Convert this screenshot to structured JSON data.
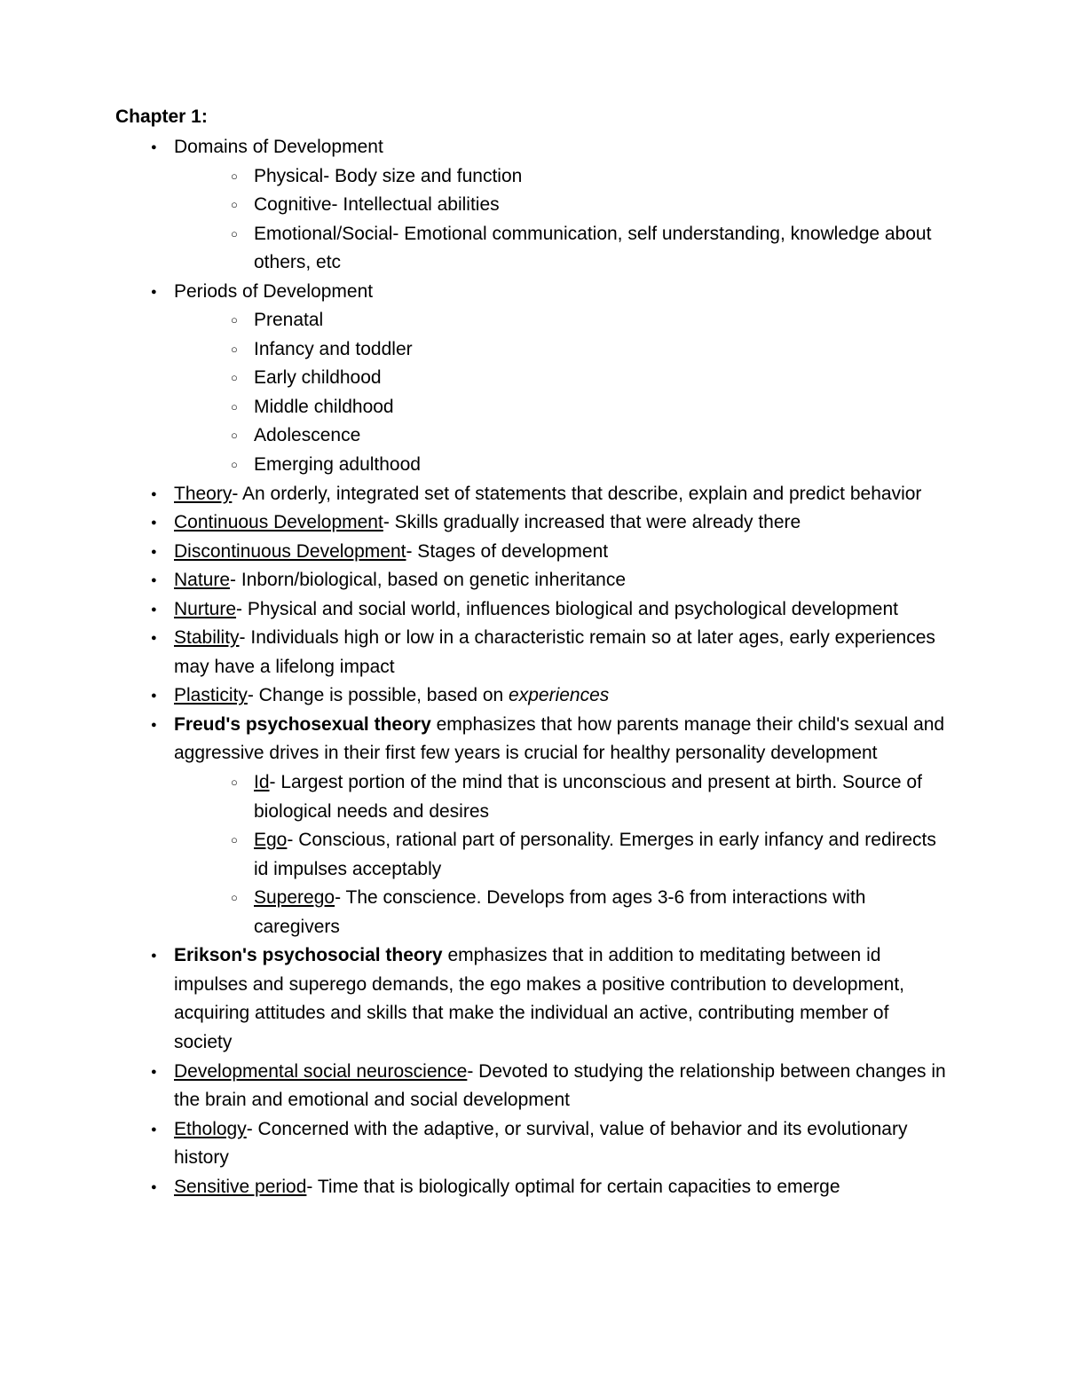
{
  "chapter_title": "Chapter 1:",
  "items": [
    {
      "segments": [
        {
          "text": "Domains of Development"
        }
      ],
      "children": [
        {
          "segments": [
            {
              "text": "Physical- Body size and function"
            }
          ]
        },
        {
          "segments": [
            {
              "text": "Cognitive- Intellectual abilities"
            }
          ]
        },
        {
          "segments": [
            {
              "text": "Emotional/Social- Emotional communication, self understanding, knowledge about others, etc"
            }
          ]
        }
      ]
    },
    {
      "segments": [
        {
          "text": "Periods of Development"
        }
      ],
      "children": [
        {
          "segments": [
            {
              "text": "Prenatal"
            }
          ]
        },
        {
          "segments": [
            {
              "text": "Infancy and toddler"
            }
          ]
        },
        {
          "segments": [
            {
              "text": "Early childhood"
            }
          ]
        },
        {
          "segments": [
            {
              "text": "Middle childhood"
            }
          ]
        },
        {
          "segments": [
            {
              "text": "Adolescence"
            }
          ]
        },
        {
          "segments": [
            {
              "text": "Emerging adulthood"
            }
          ]
        }
      ]
    },
    {
      "segments": [
        {
          "text": "Theory",
          "underline": true
        },
        {
          "text": "- An orderly, integrated set of statements that describe, explain and predict behavior"
        }
      ]
    },
    {
      "segments": [
        {
          "text": "Continuous Development",
          "underline": true
        },
        {
          "text": "- Skills gradually increased that were already there"
        }
      ]
    },
    {
      "segments": [
        {
          "text": "Discontinuous Development",
          "underline": true
        },
        {
          "text": "- Stages of development"
        }
      ]
    },
    {
      "segments": [
        {
          "text": "Nature",
          "underline": true
        },
        {
          "text": "- Inborn/biological, based on genetic inheritance"
        }
      ]
    },
    {
      "segments": [
        {
          "text": "Nurture",
          "underline": true
        },
        {
          "text": "- Physical and social world, influences biological and psychological development"
        }
      ]
    },
    {
      "segments": [
        {
          "text": "Stability",
          "underline": true
        },
        {
          "text": "- Individuals high or low in a characteristic remain so at later ages, early experiences may have a lifelong impact"
        }
      ]
    },
    {
      "segments": [
        {
          "text": "Plasticity",
          "underline": true
        },
        {
          "text": "- Change is possible, based on "
        },
        {
          "text": "experiences",
          "italic": true
        }
      ]
    },
    {
      "segments": [
        {
          "text": "Freud's psychosexual theory",
          "bold": true
        },
        {
          "text": " emphasizes that how parents manage their child's sexual and aggressive drives in their first few years is crucial for healthy personality development"
        }
      ],
      "children": [
        {
          "segments": [
            {
              "text": "Id",
              "underline": true
            },
            {
              "text": "- Largest portion of the mind that is unconscious and present at birth. Source of biological needs and desires"
            }
          ]
        },
        {
          "segments": [
            {
              "text": "Ego",
              "underline": true
            },
            {
              "text": "- Conscious, rational part of personality. Emerges in early infancy and redirects id impulses acceptably"
            }
          ]
        },
        {
          "segments": [
            {
              "text": "Superego",
              "underline": true
            },
            {
              "text": "- The conscience. Develops from ages 3-6 from interactions with caregivers"
            }
          ]
        }
      ]
    },
    {
      "segments": [
        {
          "text": "Erikson's psychosocial theory",
          "bold": true
        },
        {
          "text": " emphasizes that in addition to meditating between id impulses and superego demands, the ego makes a positive contribution to development, acquiring attitudes and skills that make the individual an active, contributing member of society"
        }
      ]
    },
    {
      "segments": [
        {
          "text": "Developmental social neuroscience",
          "underline": true
        },
        {
          "text": "- Devoted to studying the relationship between changes in the brain and emotional and social development"
        }
      ]
    },
    {
      "segments": [
        {
          "text": "Ethology",
          "underline": true
        },
        {
          "text": "- Concerned with the adaptive, or survival, value of behavior and its evolutionary history"
        }
      ]
    },
    {
      "segments": [
        {
          "text": "Sensitive period",
          "underline": true
        },
        {
          "text": "- Time that is biologically optimal for certain capacities to emerge"
        }
      ]
    }
  ]
}
